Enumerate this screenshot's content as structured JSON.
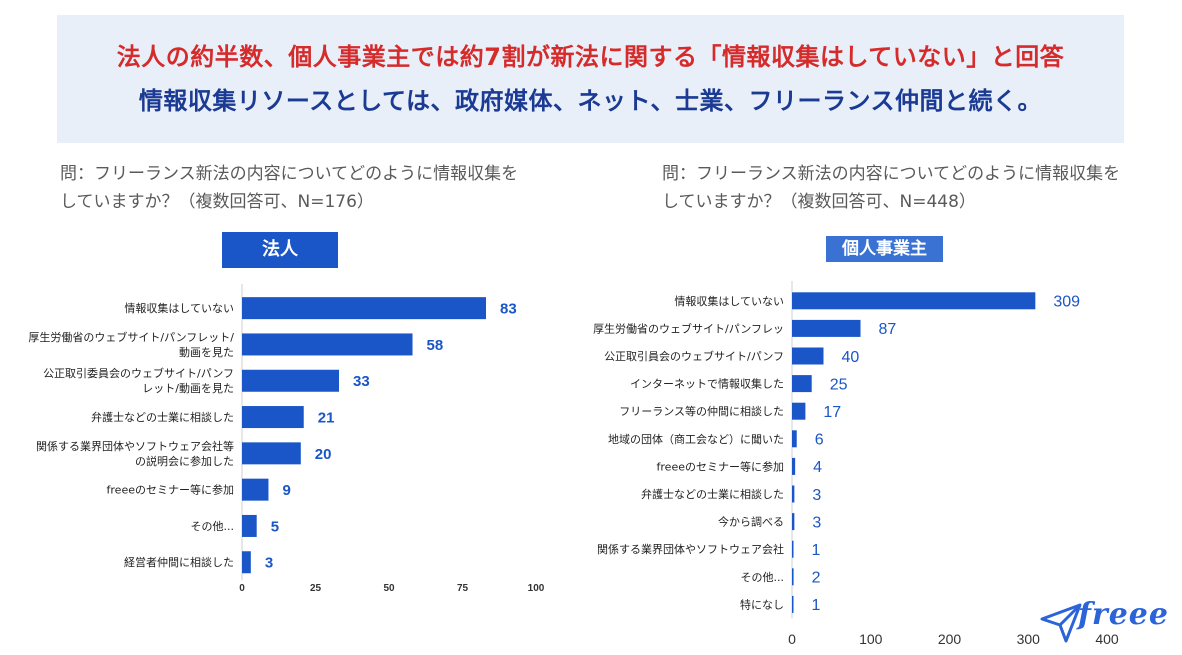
{
  "banner": {
    "headline_red": "法人の約半数、個人事業主では約7割が新法に関する「情報収集はしていない」と回答",
    "headline_blue": "情報収集リソースとしては、政府媒体、ネット、士業、フリーランス仲間と続く。"
  },
  "questions": {
    "left": "問：フリーランス新法の内容についてどのように情報収集をしていますか？（複数回答可、N=176）",
    "right": "問：フリーランス新法の内容についてどのように情報収集をしていますか？（複数回答可、N=448）"
  },
  "colors": {
    "bar": "#1a56c8",
    "value_text": "#1a56c8"
  },
  "logo": {
    "text": "freee",
    "icon": "paper-plane-icon"
  },
  "chart_data": [
    {
      "type": "bar",
      "orientation": "horizontal",
      "title": "法人",
      "categories": [
        "情報収集はしていない",
        "厚生労働省のウェブサイト/パンフレット/\n動画を見た",
        "公正取引委員会のウェブサイト/パンフ\nレット/動画を見た",
        "弁護士などの士業に相談した",
        "関係する業界団体やソフトウェア会社等\nの説明会に参加した",
        "freeeのセミナー等に参加",
        "その他...",
        "経営者仲間に相談した"
      ],
      "values": [
        83,
        58,
        33,
        21,
        20,
        9,
        5,
        3
      ],
      "xlim": [
        0,
        100
      ],
      "xticks": [
        "0",
        "25",
        "50",
        "75",
        "100"
      ]
    },
    {
      "type": "bar",
      "orientation": "horizontal",
      "title": "個人事業主",
      "categories": [
        "情報収集はしていない",
        "厚生労働省のウェブサイト/パンフレッ",
        "公正取引員会のウェブサイト/パンフ",
        "インターネットで情報収集した",
        "フリーランス等の仲間に相談した",
        "地域の団体（商工会など）に聞いた",
        "freeeのセミナー等に参加",
        "弁護士などの士業に相談した",
        "今から調べる",
        "関係する業界団体やソフトウェア会社",
        "その他...",
        "特になし"
      ],
      "values": [
        309,
        87,
        40,
        25,
        17,
        6,
        4,
        3,
        3,
        1,
        2,
        1
      ],
      "xlim": [
        0,
        400
      ],
      "xticks": [
        "0",
        "100",
        "200",
        "300",
        "400"
      ]
    }
  ]
}
